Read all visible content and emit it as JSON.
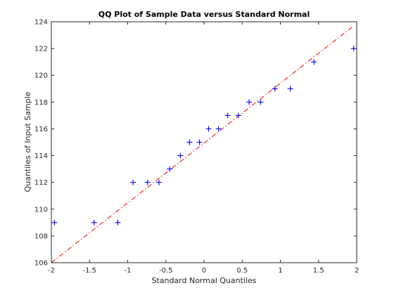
{
  "chart_data": {
    "type": "scatter",
    "title": "QQ Plot of Sample Data versus Standard Normal",
    "xlabel": "Standard Normal Quantiles",
    "ylabel": "Quantiles of Input Sample",
    "xlim": [
      -2,
      2
    ],
    "ylim": [
      106,
      124
    ],
    "x_ticks": [
      -2,
      -1.5,
      -1,
      -0.5,
      0,
      0.5,
      1,
      1.5,
      2
    ],
    "x_tick_labels": [
      "-2",
      "-1.5",
      "-1",
      "-0.5",
      "0",
      "0.5",
      "1",
      "1.5",
      "2"
    ],
    "y_ticks": [
      106,
      108,
      110,
      112,
      114,
      116,
      118,
      120,
      122,
      124
    ],
    "y_tick_labels": [
      "106",
      "108",
      "110",
      "112",
      "114",
      "116",
      "118",
      "120",
      "122",
      "124"
    ],
    "grid": false,
    "marker": "+",
    "marker_color": "#0000ff",
    "ref_line_color": "#ff0000",
    "ref_line_style": "dash-dot",
    "points": {
      "x": [
        -1.96,
        -1.44,
        -1.13,
        -0.93,
        -0.74,
        -0.59,
        -0.45,
        -0.31,
        -0.19,
        -0.06,
        0.06,
        0.19,
        0.31,
        0.45,
        0.59,
        0.74,
        0.93,
        1.13,
        1.44,
        1.96
      ],
      "y": [
        109,
        109,
        109,
        112,
        112,
        112,
        113,
        114,
        115,
        115,
        116,
        116,
        117,
        117,
        118,
        118,
        119,
        119,
        121,
        122
      ]
    },
    "reference_line": {
      "x": [
        -2,
        1.96
      ],
      "y": [
        106,
        123.7
      ]
    }
  }
}
